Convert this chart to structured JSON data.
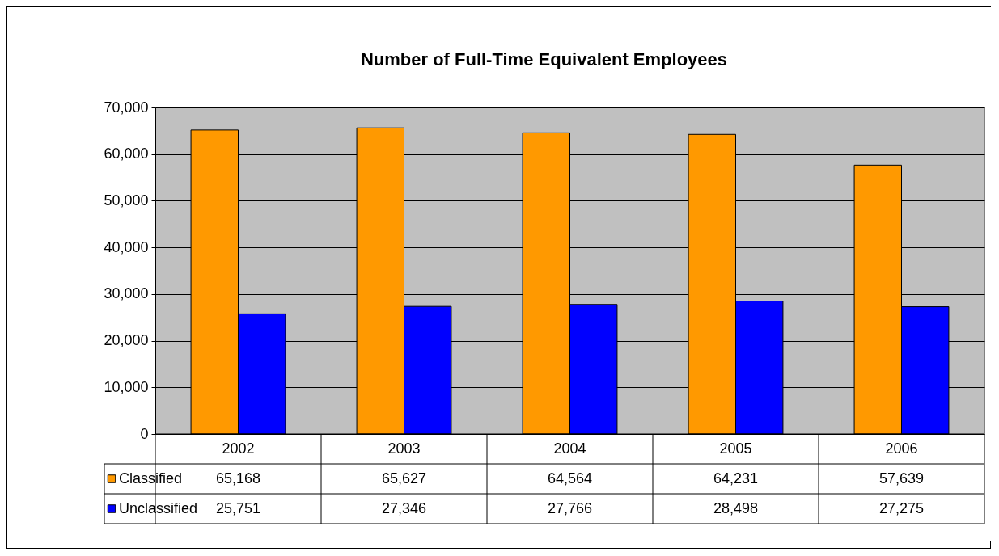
{
  "chart_data": {
    "type": "bar",
    "title": "Number of Full-Time Equivalent Employees",
    "categories": [
      "2002",
      "2003",
      "2004",
      "2005",
      "2006"
    ],
    "series": [
      {
        "name": "Classified",
        "color": "#ff9900",
        "values": [
          65168,
          65627,
          64564,
          64231,
          57639
        ],
        "value_labels": [
          "65,168",
          "65,627",
          "64,564",
          "64,231",
          "57,639"
        ]
      },
      {
        "name": "Unclassified",
        "color": "#0000ff",
        "values": [
          25751,
          27346,
          27766,
          28498,
          27275
        ],
        "value_labels": [
          "25,751",
          "27,346",
          "27,766",
          "28,498",
          "27,275"
        ]
      }
    ],
    "ylim": [
      0,
      70000
    ],
    "yticks": [
      0,
      {
        "value": 10000,
        "label": "10,000"
      },
      {
        "value": 20000,
        "label": "20,000"
      },
      {
        "value": 30000,
        "label": "30,000"
      },
      {
        "value": 40000,
        "label": "40,000"
      },
      {
        "value": 50000,
        "label": "50,000"
      },
      {
        "value": 60000,
        "label": "60,000"
      },
      {
        "value": 70000,
        "label": "70,000"
      }
    ],
    "grid": "y",
    "legend": "bottom left"
  }
}
